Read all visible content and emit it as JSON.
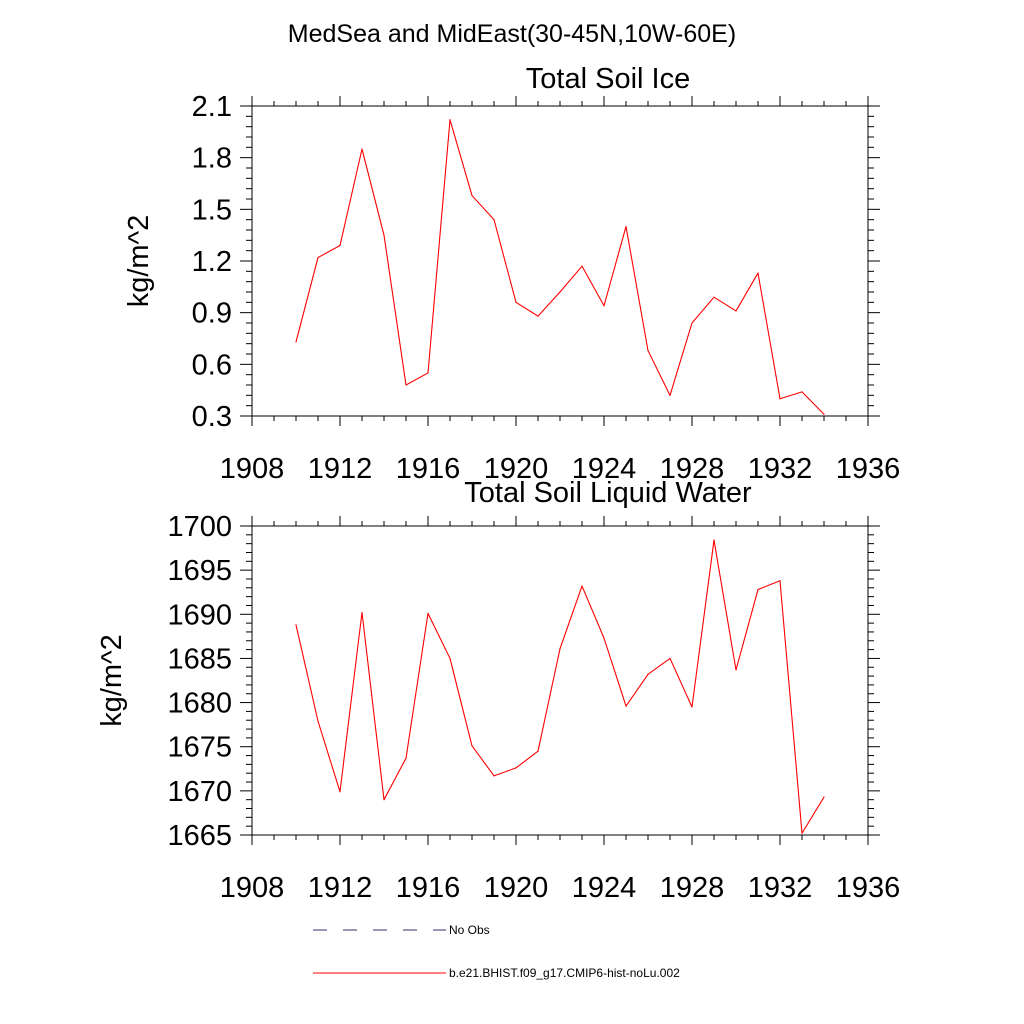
{
  "suptitle": "MedSea and MidEast(30-45N,10W-60E)",
  "legend": {
    "entries": [
      {
        "label": "No Obs",
        "style": "dashed",
        "color": "#2b2f6b"
      },
      {
        "label": "b.e21.BHIST.f09_g17.CMIP6-hist-noLu.002",
        "style": "solid",
        "color": "#ff0000"
      }
    ]
  },
  "chart_data": [
    {
      "type": "line",
      "title": "Total Soil Ice",
      "xlabel": "",
      "ylabel": "kg/m^2",
      "xlim": [
        1908,
        1936
      ],
      "ylim": [
        0.3,
        2.1
      ],
      "xticks": [
        1908,
        1912,
        1916,
        1920,
        1924,
        1928,
        1932,
        1936
      ],
      "yticks": [
        0.3,
        0.6,
        0.9,
        1.2,
        1.5,
        1.8,
        2.1
      ],
      "ytick_labels": [
        "0.3",
        "0.6",
        "0.9",
        "1.2",
        "1.5",
        "1.8",
        "2.1"
      ],
      "series": [
        {
          "name": "b.e21.BHIST.f09_g17.CMIP6-hist-noLu.002",
          "color": "#ff0000",
          "x": [
            1910,
            1911,
            1912,
            1913,
            1914,
            1915,
            1916,
            1917,
            1918,
            1919,
            1920,
            1921,
            1922,
            1923,
            1924,
            1925,
            1926,
            1927,
            1928,
            1929,
            1930,
            1931,
            1932,
            1933,
            1934
          ],
          "y": [
            0.73,
            1.22,
            1.29,
            1.85,
            1.35,
            0.48,
            0.55,
            2.02,
            1.58,
            1.44,
            0.96,
            0.88,
            1.02,
            1.17,
            0.94,
            1.4,
            0.68,
            0.42,
            0.84,
            0.99,
            0.91,
            1.13,
            0.4,
            0.44,
            0.31
          ]
        }
      ]
    },
    {
      "type": "line",
      "title": "Total Soil Liquid Water",
      "xlabel": "",
      "ylabel": "kg/m^2",
      "xlim": [
        1908,
        1936
      ],
      "ylim": [
        1665,
        1700
      ],
      "xticks": [
        1908,
        1912,
        1916,
        1920,
        1924,
        1928,
        1932,
        1936
      ],
      "yticks": [
        1665,
        1670,
        1675,
        1680,
        1685,
        1690,
        1695,
        1700
      ],
      "ytick_labels": [
        "1665",
        "1670",
        "1675",
        "1680",
        "1685",
        "1690",
        "1695",
        "1700"
      ],
      "series": [
        {
          "name": "b.e21.BHIST.f09_g17.CMIP6-hist-noLu.002",
          "color": "#ff0000",
          "x": [
            1910,
            1911,
            1912,
            1913,
            1914,
            1915,
            1916,
            1917,
            1918,
            1919,
            1920,
            1921,
            1922,
            1923,
            1924,
            1925,
            1926,
            1927,
            1928,
            1929,
            1930,
            1931,
            1932,
            1933,
            1934
          ],
          "y": [
            1688.8,
            1677.9,
            1669.9,
            1690.2,
            1669.0,
            1673.7,
            1690.1,
            1685.0,
            1675.1,
            1671.7,
            1672.6,
            1674.5,
            1686.1,
            1693.2,
            1687.3,
            1679.6,
            1683.2,
            1685.0,
            1679.5,
            1698.4,
            1683.7,
            1692.8,
            1693.8,
            1665.2,
            1669.3
          ]
        }
      ]
    }
  ]
}
